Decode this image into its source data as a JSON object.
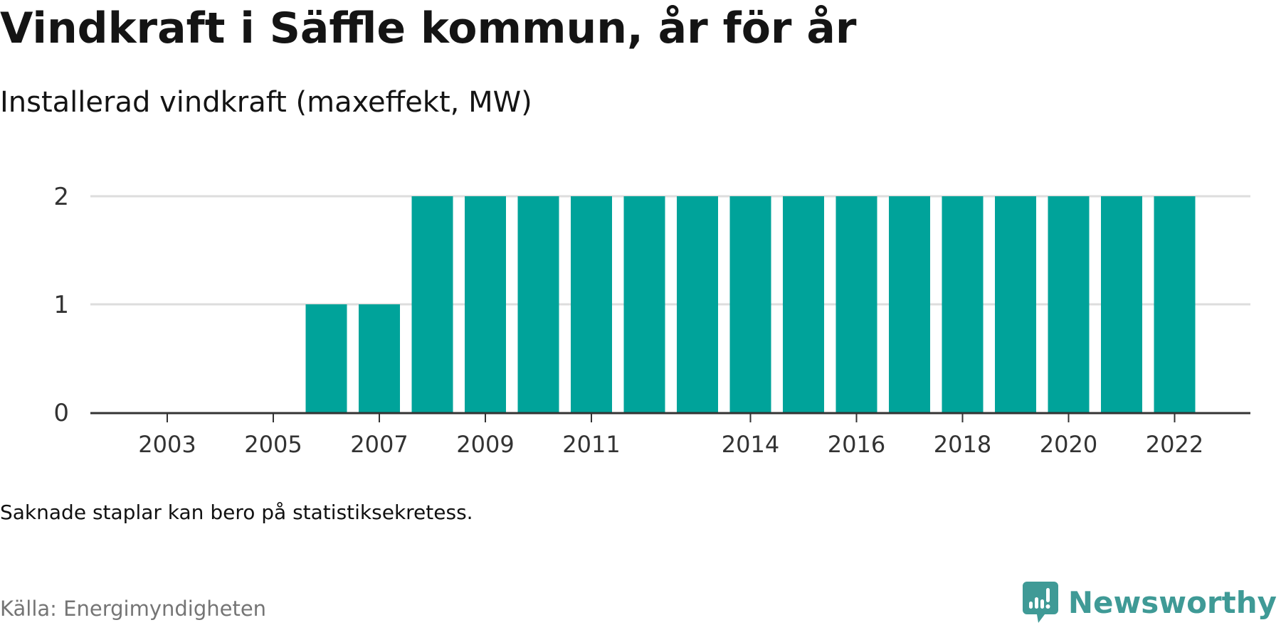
{
  "title": "Vindkraft i Säffle kommun, år för år",
  "subtitle": "Installerad vindkraft (maxeffekt, MW)",
  "note": "Saknade staplar kan bero på statistiksekretess.",
  "source": "Källa: Energimyndigheten",
  "logo": {
    "text": "Newsworthy",
    "icon": "newsworthy-logo-icon",
    "color": "#3f9a96"
  },
  "colors": {
    "bar": "#00a39a",
    "grid": "#dddddd",
    "axis": "#333333",
    "tick_text": "#333333"
  },
  "chart_data": {
    "type": "bar",
    "x": [
      2002,
      2003,
      2004,
      2005,
      2006,
      2007,
      2008,
      2009,
      2010,
      2011,
      2012,
      2013,
      2014,
      2015,
      2016,
      2017,
      2018,
      2019,
      2020,
      2021,
      2022
    ],
    "values": [
      0,
      0,
      0,
      0,
      1,
      1,
      2,
      2,
      2,
      2,
      2,
      2,
      2,
      2,
      2,
      2,
      2,
      2,
      2,
      2,
      2
    ],
    "x_tick_labels": [
      "2003",
      "2005",
      "2007",
      "2009",
      "2011",
      "2014",
      "2016",
      "2018",
      "2020",
      "2022"
    ],
    "y_ticks": [
      0,
      1,
      2
    ],
    "ylim": [
      0,
      2
    ],
    "xlabel": "",
    "ylabel": "",
    "grid": true,
    "legend": false
  }
}
